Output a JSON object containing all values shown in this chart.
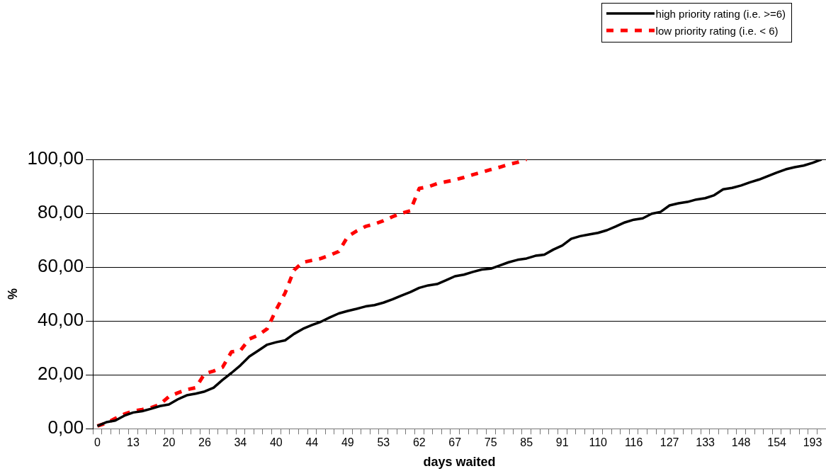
{
  "chart_data": {
    "type": "line",
    "xlabel": "days waited",
    "ylabel": "%",
    "categories": [
      "0",
      null,
      null,
      null,
      "13",
      null,
      null,
      null,
      "20",
      null,
      null,
      null,
      "26",
      null,
      null,
      null,
      "34",
      null,
      null,
      null,
      "40",
      null,
      null,
      null,
      "44",
      null,
      null,
      null,
      "49",
      null,
      null,
      null,
      "53",
      null,
      null,
      null,
      "62",
      null,
      null,
      null,
      "67",
      null,
      null,
      null,
      "75",
      null,
      null,
      null,
      "85",
      null,
      null,
      null,
      "91",
      null,
      null,
      null,
      "110",
      null,
      null,
      null,
      "116",
      null,
      null,
      null,
      "127",
      null,
      null,
      null,
      "133",
      null,
      null,
      null,
      "148",
      null,
      null,
      null,
      "154",
      null,
      null,
      null,
      "193",
      null
    ],
    "series": [
      {
        "name": "high priority rating (i.e. >=6)",
        "color": "#000000",
        "line_style": "solid",
        "values": [
          1.0,
          2.4,
          3.0,
          4.8,
          6.0,
          6.5,
          7.4,
          8.4,
          9.0,
          10.9,
          12.4,
          13.0,
          13.8,
          15.2,
          18.1,
          20.7,
          23.5,
          26.8,
          29.0,
          31.2,
          32.1,
          32.8,
          35.2,
          37.1,
          38.5,
          39.7,
          41.3,
          42.8,
          43.7,
          44.5,
          45.4,
          45.9,
          46.8,
          48.0,
          49.4,
          50.7,
          52.3,
          53.2,
          53.7,
          55.1,
          56.6,
          57.2,
          58.2,
          59.1,
          59.4,
          60.6,
          61.8,
          62.7,
          63.2,
          64.2,
          64.6,
          66.5,
          68.0,
          70.5,
          71.5,
          72.1,
          72.7,
          73.7,
          75.1,
          76.6,
          77.6,
          78.1,
          79.8,
          80.5,
          82.9,
          83.7,
          84.2,
          85.1,
          85.6,
          86.7,
          88.9,
          89.4,
          90.3,
          91.5,
          92.5,
          93.8,
          95.1,
          96.3,
          97.1,
          97.7,
          98.7,
          100
        ]
      },
      {
        "name": "low priority rating (i.e. < 6)",
        "color": "#ff0000",
        "line_style": "dashed",
        "values": [
          1.0,
          2.1,
          3.8,
          5.4,
          6.5,
          7.1,
          7.8,
          9.0,
          11.9,
          13.3,
          14.5,
          15.2,
          20.4,
          21.4,
          22.8,
          28.5,
          29.0,
          33.3,
          34.7,
          37.1,
          44.2,
          50.4,
          58.9,
          61.8,
          62.5,
          63.2,
          64.4,
          65.8,
          71.3,
          73.4,
          75.1,
          76.0,
          77.2,
          78.7,
          80.0,
          80.9,
          89.2,
          89.8,
          91.0,
          91.7,
          92.4,
          93.3,
          94.3,
          95.2,
          96.2,
          97.1,
          98.1,
          98.9,
          100,
          null,
          null,
          null,
          null,
          null,
          null,
          null,
          null,
          null,
          null,
          null,
          null,
          null,
          null,
          null,
          null,
          null,
          null,
          null,
          null,
          null,
          null,
          null,
          null,
          null,
          null,
          null,
          null,
          null,
          null,
          null,
          null,
          null
        ]
      }
    ],
    "ylim": [
      0,
      100
    ],
    "yticks": [
      {
        "value": 0,
        "label": "0,00"
      },
      {
        "value": 20,
        "label": "20,00"
      },
      {
        "value": 40,
        "label": "40,00"
      },
      {
        "value": 60,
        "label": "60,00"
      },
      {
        "value": 80,
        "label": "80,00"
      },
      {
        "value": 100,
        "label": "100,00"
      }
    ],
    "grid": "y",
    "legend": "top right",
    "marker": "none"
  }
}
